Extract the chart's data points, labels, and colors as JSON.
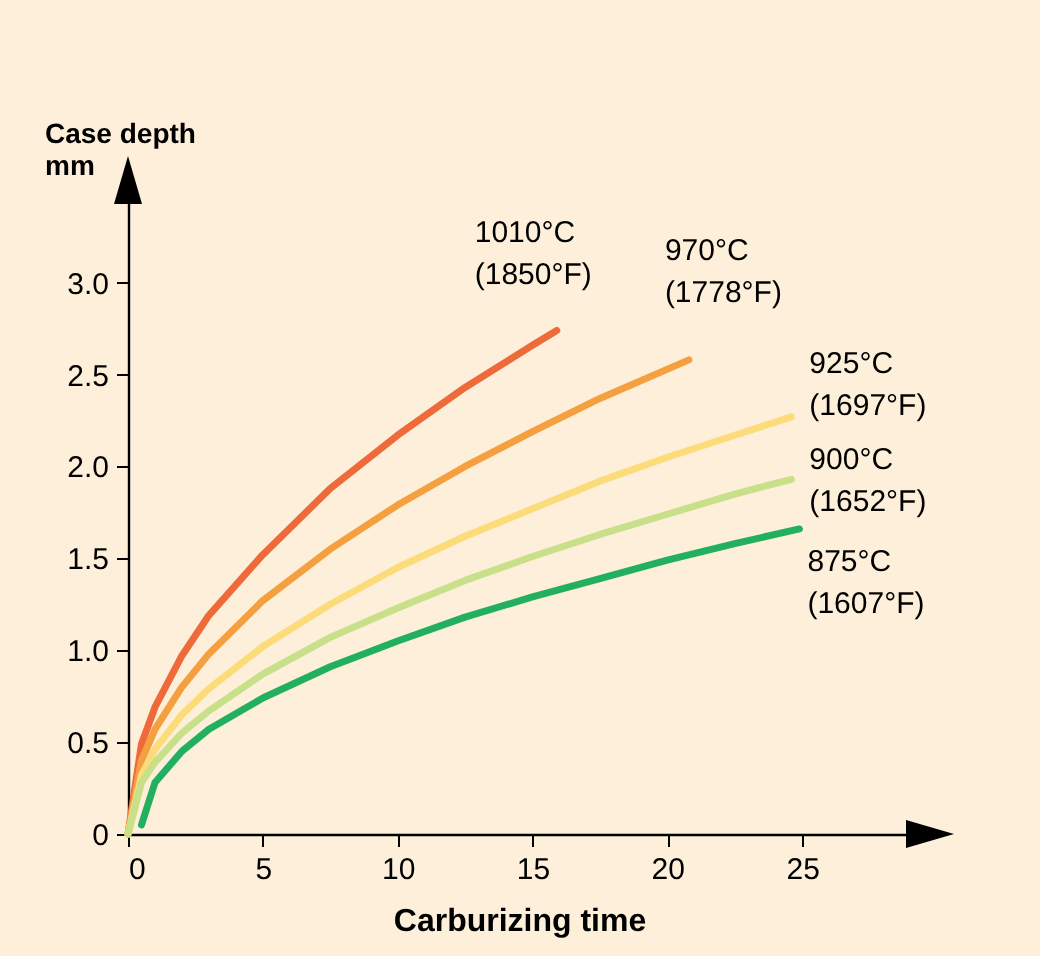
{
  "chart_data": {
    "type": "line",
    "ylabel": "Case depth\nmm",
    "xlabel": "Carburizing time",
    "xlim": [
      0,
      29
    ],
    "xticks": [
      0,
      5,
      10,
      15,
      20,
      25
    ],
    "ylim": [
      0,
      3.45
    ],
    "yticks": [
      0,
      0.5,
      {
        "value": 1,
        "label": "1.0"
      },
      1.5,
      {
        "value": 2,
        "label": "2.0"
      },
      2.5,
      {
        "value": 3,
        "label": "3.0"
      }
    ],
    "grid": false,
    "legend": false,
    "marker": "none",
    "line_style": "solid",
    "series": [
      {
        "name": "1010°C (1850°F)",
        "color": "#ee6a3a",
        "x": [
          0,
          0.5,
          1,
          2,
          3,
          5,
          7.5,
          10,
          12.5,
          15,
          15.9
        ],
        "values": [
          0,
          0.49,
          0.69,
          0.97,
          1.19,
          1.52,
          1.88,
          2.17,
          2.43,
          2.66,
          2.74
        ]
      },
      {
        "name": "970°C (1778°F)",
        "color": "#f5a040",
        "x": [
          0,
          0.5,
          1,
          2,
          3,
          5,
          7.5,
          10,
          12.5,
          15,
          17.5,
          20.8
        ],
        "values": [
          0,
          0.4,
          0.57,
          0.8,
          0.98,
          1.27,
          1.55,
          1.79,
          2.0,
          2.19,
          2.37,
          2.58
        ]
      },
      {
        "name": "925°C (1697°F)",
        "color": "#fcdc7a",
        "x": [
          0,
          0.5,
          1,
          2,
          3,
          5,
          7.5,
          10,
          12.5,
          15,
          17.5,
          20,
          22.5,
          24.6
        ],
        "values": [
          0,
          0.32,
          0.46,
          0.65,
          0.79,
          1.02,
          1.25,
          1.45,
          1.62,
          1.77,
          1.92,
          2.05,
          2.17,
          2.27
        ]
      },
      {
        "name": "900°C (1652°F)",
        "color": "#c8e08a",
        "x": [
          0,
          0.5,
          1,
          2,
          3,
          5,
          7.5,
          10,
          12.5,
          15,
          17.5,
          20,
          22.5,
          24.6
        ],
        "values": [
          0,
          0.28,
          0.39,
          0.55,
          0.67,
          0.87,
          1.07,
          1.23,
          1.38,
          1.51,
          1.63,
          1.74,
          1.85,
          1.93
        ]
      },
      {
        "name": "875°C (1607°F)",
        "color": "#22b060",
        "x": [
          0.5,
          1,
          2,
          3,
          5,
          7.5,
          10,
          12.5,
          15,
          17.5,
          20,
          22.5,
          24.9
        ],
        "values": [
          0.05,
          0.28,
          0.45,
          0.57,
          0.74,
          0.91,
          1.05,
          1.18,
          1.29,
          1.39,
          1.49,
          1.58,
          1.66
        ]
      }
    ]
  }
}
